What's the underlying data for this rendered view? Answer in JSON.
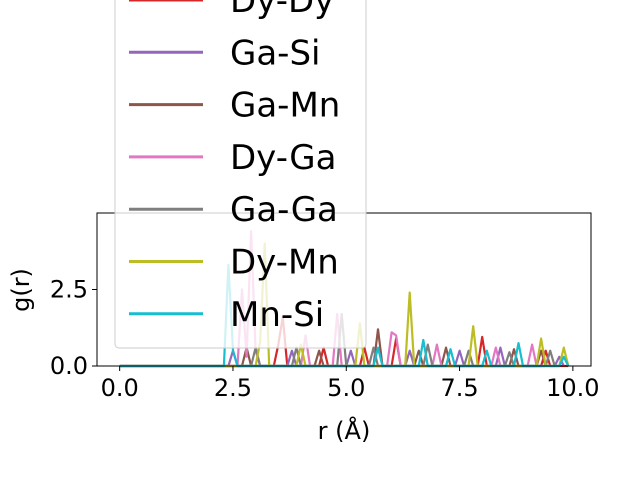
{
  "chart_data": {
    "type": "line",
    "xlabel": "r (Å)",
    "ylabel": "g(r)",
    "xlim": [
      -0.5,
      10.4
    ],
    "ylim": [
      0,
      5
    ],
    "xticks": [
      "0.0",
      "2.5",
      "5.0",
      "7.5",
      "10.0"
    ],
    "xtick_values": [
      0,
      2.5,
      5,
      7.5,
      10
    ],
    "yticks": [
      "0.0",
      "2.5"
    ],
    "ytick_values": [
      0,
      2.5
    ],
    "grid": false,
    "legend_position": "upper-left (overlapping axes)",
    "series": [
      {
        "name": "Dy-Dy",
        "color": "#d62728",
        "x": [
          0,
          2.0,
          3.4,
          3.5,
          3.6,
          3.7,
          4.4,
          4.5,
          4.6,
          5.3,
          5.4,
          5.5,
          6.0,
          6.1,
          6.2,
          7.9,
          8.0,
          8.1,
          9.3,
          9.4,
          9.5,
          9.9
        ],
        "y": [
          0,
          0,
          0,
          0.7,
          1.6,
          0,
          0,
          0.6,
          0,
          0,
          0.6,
          0,
          0,
          0.9,
          0,
          0,
          0.95,
          0,
          0,
          0.5,
          0,
          0
        ]
      },
      {
        "name": "Ga-Si",
        "color": "#9467bd",
        "x": [
          0,
          2.4,
          2.5,
          2.6,
          3.7,
          3.8,
          3.9,
          5.0,
          5.1,
          5.2,
          6.3,
          6.4,
          6.5,
          7.4,
          7.5,
          7.6,
          8.3,
          8.4,
          8.5,
          9.6,
          9.7,
          9.8
        ],
        "y": [
          0,
          0,
          0.5,
          0,
          0,
          0.5,
          0,
          0,
          0.5,
          0,
          0,
          0.5,
          0,
          0,
          0.5,
          0,
          0,
          0.6,
          0,
          0,
          0.3,
          0
        ]
      },
      {
        "name": "Ga-Mn",
        "color": "#8c564b",
        "x": [
          0,
          2.7,
          2.8,
          2.9,
          4.3,
          4.4,
          4.5,
          5.6,
          5.7,
          5.8,
          6.5,
          6.6,
          6.7,
          7.1,
          7.2,
          7.3,
          8.6,
          8.7,
          8.8,
          9.2,
          9.3,
          9.4
        ],
        "y": [
          0,
          0,
          0.6,
          0,
          0,
          0.5,
          0,
          0,
          1.2,
          0,
          0,
          0.5,
          0,
          0,
          0.6,
          0,
          0,
          0.55,
          0,
          0,
          0.5,
          0
        ]
      },
      {
        "name": "Dy-Ga",
        "color": "#e377c2",
        "x": [
          0,
          2.6,
          2.7,
          2.8,
          2.9,
          3.0,
          3.1,
          4.0,
          4.1,
          4.2,
          4.7,
          4.8,
          4.9,
          5.9,
          6.0,
          6.1,
          6.2,
          6.3,
          6.9,
          7.0,
          7.1,
          8.2,
          8.3,
          8.4,
          9.0,
          9.1,
          9.2
        ],
        "y": [
          0,
          0,
          2.5,
          0.3,
          4.4,
          0.5,
          0,
          0,
          1.0,
          0,
          0,
          1.7,
          0,
          0,
          1.1,
          1.0,
          0,
          0,
          0,
          0.7,
          0,
          0,
          0.6,
          0,
          0,
          0.7,
          0
        ]
      },
      {
        "name": "Ga-Ga",
        "color": "#7f7f7f",
        "x": [
          0,
          2.9,
          3.0,
          3.1,
          3.8,
          3.9,
          4.0,
          4.8,
          4.9,
          5.0,
          5.5,
          5.6,
          5.7,
          6.7,
          6.8,
          6.9,
          7.6,
          7.7,
          7.8,
          8.5,
          8.6,
          8.7,
          9.4,
          9.5,
          9.6
        ],
        "y": [
          0,
          0,
          0.6,
          0,
          0,
          0.6,
          0,
          0,
          1.7,
          0,
          0,
          0.6,
          0,
          0,
          0.7,
          0,
          0,
          0.5,
          0,
          0,
          0.45,
          0,
          0,
          0.5,
          0
        ]
      },
      {
        "name": "Dy-Mn",
        "color": "#bcbd22",
        "x": [
          0,
          3.0,
          3.1,
          3.2,
          3.3,
          3.9,
          4.0,
          4.1,
          5.2,
          5.3,
          5.4,
          6.3,
          6.4,
          6.5,
          7.7,
          7.8,
          7.9,
          9.2,
          9.3,
          9.4,
          9.7,
          9.8,
          9.9
        ],
        "y": [
          0,
          0,
          0.8,
          4.0,
          0,
          0,
          0.7,
          0,
          0,
          1.4,
          0,
          0,
          2.4,
          0,
          0,
          1.3,
          0,
          0,
          0.9,
          0,
          0,
          0.6,
          0
        ]
      },
      {
        "name": "Mn-Si",
        "color": "#17becf",
        "x": [
          0,
          2.3,
          2.4,
          2.5,
          2.6,
          5.6,
          5.7,
          5.8,
          6.6,
          6.7,
          6.8,
          7.2,
          7.3,
          7.4,
          8.0,
          8.1,
          8.2,
          8.7,
          8.8,
          8.9,
          9.7,
          9.8,
          9.9
        ],
        "y": [
          0,
          0,
          3.3,
          0.5,
          0,
          0,
          0.6,
          0,
          0,
          0.85,
          0,
          0,
          0.55,
          0,
          0,
          0.5,
          0,
          0,
          0.75,
          0,
          0,
          0.3,
          0
        ]
      }
    ]
  },
  "legend_entries": [
    {
      "label": "Dy-Dy",
      "color": "#d62728"
    },
    {
      "label": "Ga-Si",
      "color": "#9467bd"
    },
    {
      "label": "Ga-Mn",
      "color": "#8c564b"
    },
    {
      "label": "Dy-Ga",
      "color": "#e377c2"
    },
    {
      "label": "Ga-Ga",
      "color": "#7f7f7f"
    },
    {
      "label": "Dy-Mn",
      "color": "#bcbd22"
    },
    {
      "label": "Mn-Si",
      "color": "#17becf"
    }
  ]
}
